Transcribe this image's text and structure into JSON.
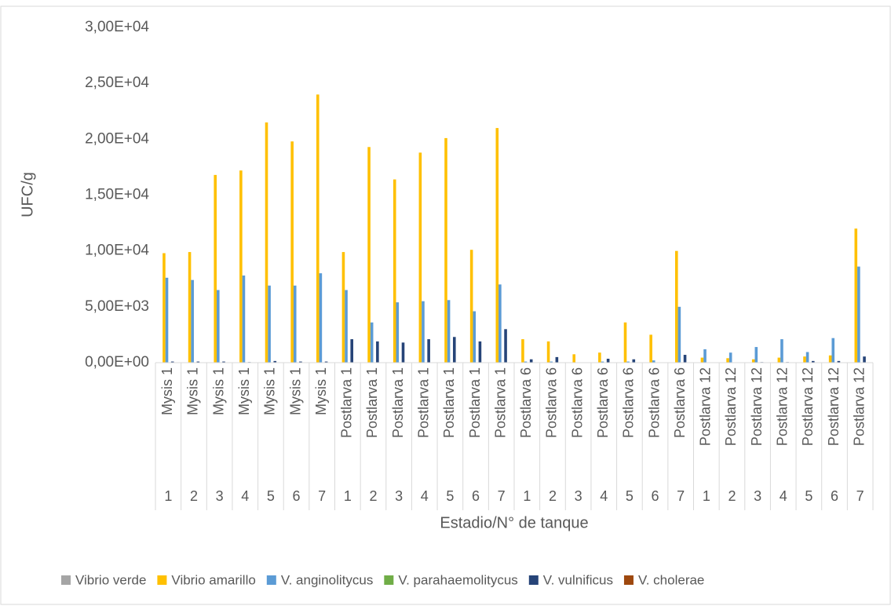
{
  "chart_data": {
    "type": "bar",
    "ylabel": "UFC/g",
    "xlabel": "Estadio/N° de tanque",
    "category_groups": [
      "Mysis 1",
      "Mysis 1",
      "Mysis 1",
      "Mysis 1",
      "Mysis 1",
      "Mysis 1",
      "Mysis 1",
      "Postlarva 1",
      "Postlarva 1",
      "Postlarva 1",
      "Postlarva 1",
      "Postlarva 1",
      "Postlarva 1",
      "Postlarva 1",
      "Postlarva 6",
      "Postlarva 6",
      "Postlarva 6",
      "Postlarva 6",
      "Postlarva 6",
      "Postlarva 6",
      "Postlarva 6",
      "Postlarva 12",
      "Postlarva 12",
      "Postlarva 12",
      "Postlarva 12",
      "Postlarva 12",
      "Postlarva 12",
      "Postlarva 12"
    ],
    "categories": [
      "1",
      "2",
      "3",
      "4",
      "5",
      "6",
      "7",
      "1",
      "2",
      "3",
      "4",
      "5",
      "6",
      "7",
      "1",
      "2",
      "3",
      "4",
      "5",
      "6",
      "7",
      "1",
      "2",
      "3",
      "4",
      "5",
      "6",
      "7"
    ],
    "series": [
      {
        "name": "Vibrio verde",
        "color": "#a5a5a5",
        "values": [
          0,
          0,
          0,
          0,
          0,
          0,
          0,
          0,
          0,
          0,
          0,
          0,
          0,
          0,
          0,
          0,
          0,
          0,
          0,
          0,
          0,
          0,
          0,
          0,
          0,
          0,
          0,
          0
        ]
      },
      {
        "name": "Vibrio amarillo",
        "color": "#ffc000",
        "values": [
          9800,
          9900,
          16800,
          17200,
          21500,
          19800,
          24000,
          9900,
          19300,
          16400,
          18800,
          20100,
          10100,
          21000,
          2100,
          1900,
          750,
          900,
          3600,
          2500,
          10000,
          450,
          400,
          300,
          450,
          550,
          650,
          12000
        ]
      },
      {
        "name": "V. anginolitycus",
        "color": "#5b9bd5",
        "values": [
          7600,
          7400,
          6500,
          7800,
          6900,
          6900,
          8000,
          6500,
          3600,
          5400,
          5500,
          5600,
          4600,
          7000,
          100,
          100,
          0,
          100,
          100,
          200,
          5000,
          1200,
          900,
          1400,
          2100,
          950,
          2200,
          8600
        ]
      },
      {
        "name": "V. parahaemolitycus",
        "color": "#70ad47",
        "values": [
          0,
          0,
          0,
          0,
          0,
          0,
          0,
          0,
          0,
          0,
          0,
          0,
          0,
          0,
          0,
          0,
          0,
          0,
          0,
          0,
          0,
          0,
          0,
          0,
          0,
          0,
          0,
          0
        ]
      },
      {
        "name": "V. vulnificus",
        "color": "#264478",
        "values": [
          100,
          100,
          100,
          50,
          150,
          100,
          100,
          2100,
          1900,
          1800,
          2100,
          2300,
          1900,
          3000,
          300,
          500,
          0,
          350,
          300,
          0,
          700,
          0,
          0,
          50,
          50,
          150,
          150,
          550
        ]
      },
      {
        "name": "V. cholerae",
        "color": "#9e480e",
        "values": [
          0,
          0,
          0,
          0,
          0,
          0,
          0,
          0,
          0,
          0,
          0,
          0,
          0,
          0,
          0,
          0,
          0,
          0,
          0,
          0,
          0,
          0,
          0,
          0,
          0,
          0,
          0,
          0
        ]
      }
    ],
    "ylim": [
      0,
      30000
    ],
    "yticks": [
      {
        "value": 0,
        "label": "0,00E+00"
      },
      {
        "value": 5000,
        "label": "5,00E+03"
      },
      {
        "value": 10000,
        "label": "1,00E+04"
      },
      {
        "value": 15000,
        "label": "1,50E+04"
      },
      {
        "value": 20000,
        "label": "2,00E+04"
      },
      {
        "value": 25000,
        "label": "2,50E+04"
      },
      {
        "value": 30000,
        "label": "3,00E+04"
      }
    ],
    "grid": false,
    "legend": "bottom"
  }
}
